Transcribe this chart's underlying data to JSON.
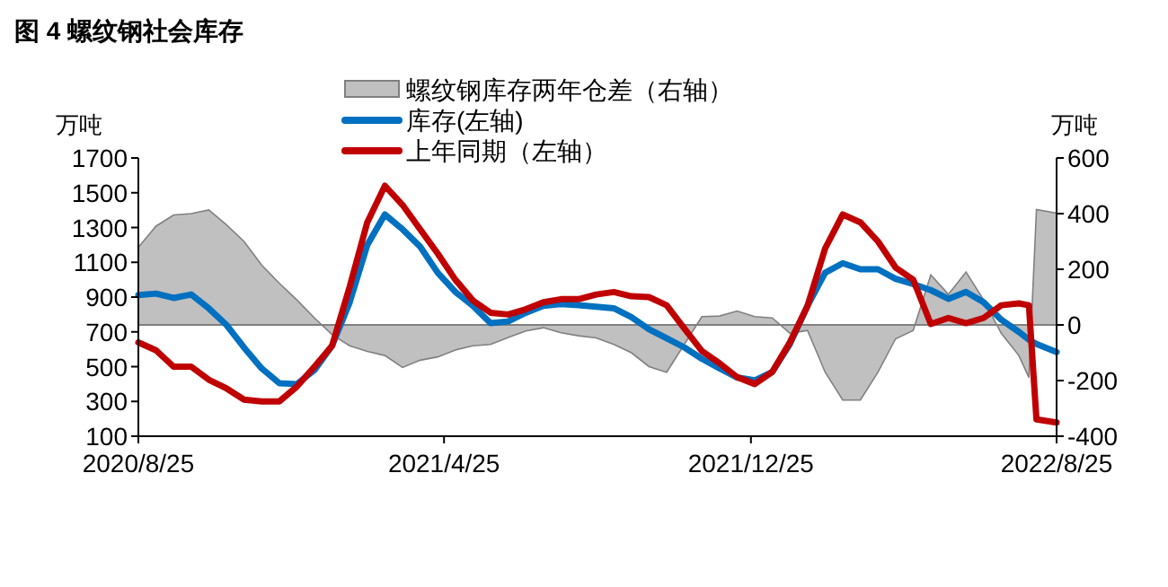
{
  "chart_data": {
    "type": "line",
    "title": "图 4 螺纹钢社会库存",
    "ylabel": "万吨",
    "y2label": "万吨",
    "x": [
      "2020-08-25",
      "2020-09-08",
      "2020-09-22",
      "2020-10-06",
      "2020-10-20",
      "2020-11-03",
      "2020-11-17",
      "2020-12-01",
      "2020-12-15",
      "2020-12-29",
      "2021-01-12",
      "2021-01-26",
      "2021-02-09",
      "2021-02-23",
      "2021-03-09",
      "2021-03-23",
      "2021-04-06",
      "2021-04-20",
      "2021-05-04",
      "2021-05-18",
      "2021-06-01",
      "2021-06-15",
      "2021-06-29",
      "2021-07-13",
      "2021-07-27",
      "2021-08-10",
      "2021-08-24",
      "2021-09-07",
      "2021-09-21",
      "2021-10-05",
      "2021-10-19",
      "2021-11-02",
      "2021-11-16",
      "2021-11-30",
      "2021-12-14",
      "2021-12-28",
      "2022-01-11",
      "2022-01-25",
      "2022-02-08",
      "2022-02-22",
      "2022-03-08",
      "2022-03-22",
      "2022-04-05",
      "2022-04-19",
      "2022-05-03",
      "2022-05-17",
      "2022-05-31",
      "2022-06-14",
      "2022-06-28",
      "2022-07-12",
      "2022-07-26",
      "2022-08-03",
      "2022-08-09",
      "2022-08-25"
    ],
    "series": [
      {
        "name": "螺纹钢库存两年仓差（右轴）",
        "type": "area",
        "axis": "y2",
        "color": "#c0c0c0",
        "values": [
          279,
          355,
          395,
          400,
          413,
          360,
          300,
          215,
          150,
          90,
          25,
          -35,
          -75,
          -95,
          -110,
          -153,
          -127,
          -115,
          -90,
          -75,
          -70,
          -45,
          -22,
          -10,
          -28,
          -39,
          -47,
          -70,
          -100,
          -150,
          -170,
          -70,
          30,
          32,
          50,
          30,
          25,
          -30,
          -20,
          -170,
          -270,
          -270,
          -170,
          -50,
          -20,
          180,
          110,
          190,
          90,
          -30,
          -110,
          -189,
          415,
          402
        ]
      },
      {
        "name": "库存(左轴)",
        "color": "#0070c0",
        "values": [
          912,
          920,
          895,
          915,
          835,
          740,
          610,
          490,
          405,
          400,
          480,
          620,
          870,
          1200,
          1375,
          1290,
          1190,
          1040,
          930,
          850,
          750,
          760,
          810,
          850,
          860,
          853,
          845,
          836,
          784,
          715,
          663,
          611,
          545,
          490,
          438,
          421,
          470,
          630,
          850,
          1040,
          1095,
          1060,
          1060,
          1005,
          975,
          940,
          890,
          930,
          870,
          770,
          700,
          655,
          630,
          584
        ]
      },
      {
        "name": "上年同期（左轴）",
        "color": "#c00000",
        "values": [
          639,
          594,
          500,
          500,
          425,
          375,
          310,
          300,
          300,
          385,
          500,
          620,
          960,
          1330,
          1540,
          1430,
          1290,
          1150,
          1000,
          880,
          810,
          800,
          830,
          870,
          888,
          888,
          915,
          929,
          905,
          900,
          853,
          720,
          590,
          520,
          440,
          400,
          470,
          640,
          850,
          1180,
          1375,
          1330,
          1220,
          1070,
          1000,
          745,
          780,
          750,
          780,
          853,
          864,
          853,
          197,
          179
        ]
      }
    ],
    "xlim": [
      "2020-08-25",
      "2022-08-25"
    ],
    "xticks": [
      {
        "value": "2020-08-25",
        "label": "2020/8/25"
      },
      {
        "value": "2021-04-25",
        "label": "2021/4/25"
      },
      {
        "value": "2021-12-25",
        "label": "2021/12/25"
      },
      {
        "value": "2022-08-25",
        "label": "2022/8/25"
      }
    ],
    "ylim": [
      100,
      1700
    ],
    "yticks": [
      100,
      300,
      500,
      700,
      900,
      1100,
      1300,
      1500,
      1700
    ],
    "y2lim": [
      -400,
      600
    ],
    "y2ticks": [
      -400,
      -200,
      0,
      200,
      400,
      600
    ],
    "ref_lines": [
      {
        "axis": "y2",
        "value": 0,
        "color": "#808080"
      }
    ],
    "legend": "top",
    "grid": false
  }
}
